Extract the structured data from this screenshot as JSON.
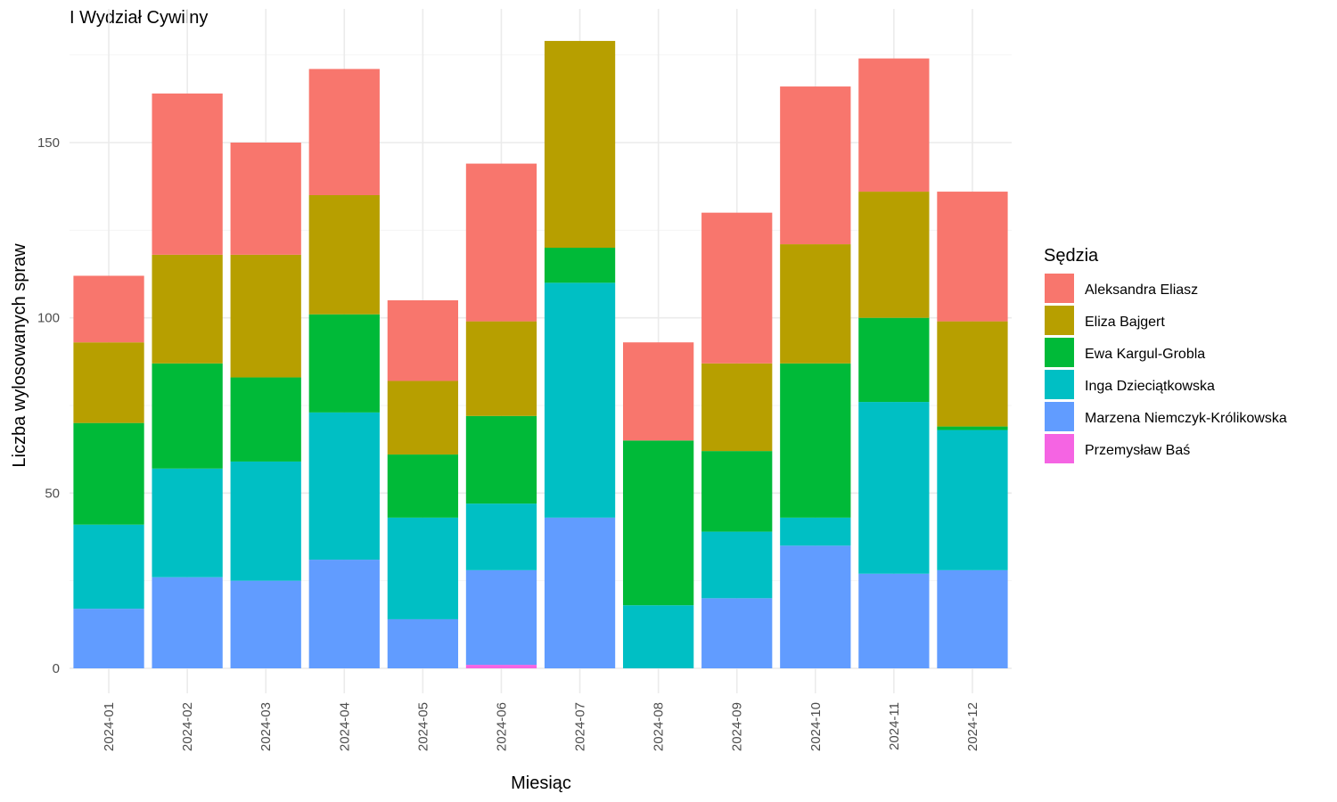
{
  "chart_data": {
    "type": "bar",
    "stacked": true,
    "title": "I Wydział Cywilny",
    "xlabel": "Miesiąc",
    "ylabel": "Liczba wylosowanych spraw",
    "ylim": [
      0,
      180
    ],
    "yticks": [
      0,
      50,
      100,
      150
    ],
    "grid": true,
    "legend_position": "right",
    "legend_title": "Sędzia",
    "categories": [
      "2024-01",
      "2024-02",
      "2024-03",
      "2024-04",
      "2024-05",
      "2024-06",
      "2024-07",
      "2024-08",
      "2024-09",
      "2024-10",
      "2024-11",
      "2024-12"
    ],
    "series": [
      {
        "name": "Aleksandra Eliasz",
        "color": "#F8766D",
        "values": [
          19,
          46,
          32,
          36,
          23,
          45,
          0,
          28,
          43,
          45,
          38,
          37
        ]
      },
      {
        "name": "Eliza Bajgert",
        "color": "#B79F00",
        "values": [
          23,
          31,
          35,
          34,
          21,
          27,
          59,
          0,
          25,
          34,
          36,
          30
        ]
      },
      {
        "name": "Ewa Kargul-Grobla",
        "color": "#00BA38",
        "values": [
          29,
          30,
          24,
          28,
          18,
          25,
          10,
          47,
          23,
          44,
          24,
          1
        ]
      },
      {
        "name": "Inga Dzieciątkowska",
        "color": "#00BFC4",
        "values": [
          24,
          31,
          34,
          42,
          29,
          19,
          67,
          18,
          19,
          8,
          49,
          40
        ]
      },
      {
        "name": "Marzena Niemczyk-Królikowska",
        "color": "#619CFF",
        "values": [
          17,
          26,
          25,
          31,
          14,
          27,
          43,
          0,
          20,
          35,
          27,
          28
        ]
      },
      {
        "name": "Przemysław Baś",
        "color": "#F564E3",
        "values": [
          0,
          0,
          0,
          0,
          0,
          1,
          0,
          0,
          0,
          0,
          0,
          0
        ]
      }
    ]
  }
}
